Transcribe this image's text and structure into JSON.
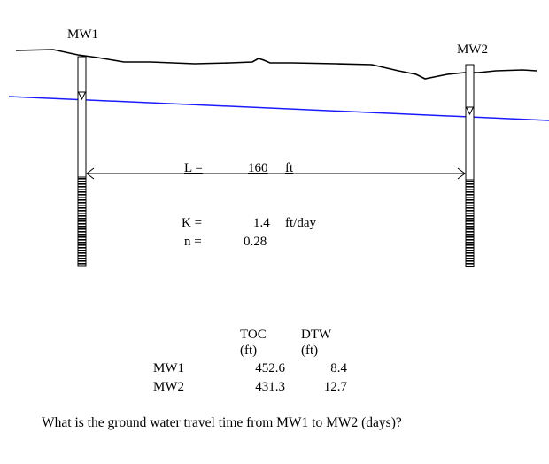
{
  "wells": [
    {
      "name": "MW1"
    },
    {
      "name": "MW2"
    }
  ],
  "distance": {
    "label": "L =",
    "value": "160",
    "unit": "ft"
  },
  "conductivity": {
    "label": "K =",
    "value": "1.4",
    "unit": "ft/day"
  },
  "porosity": {
    "label": "n =",
    "value": "0.28"
  },
  "table": {
    "col_toc": "TOC",
    "col_toc_unit": "(ft)",
    "col_dtw": "DTW",
    "col_dtw_unit": "(ft)",
    "rows": [
      {
        "well": "MW1",
        "toc": "452.6",
        "dtw": "8.4"
      },
      {
        "well": "MW2",
        "toc": "431.3",
        "dtw": "12.7"
      }
    ]
  },
  "question": "What is the ground water travel time from MW1 to MW2 (days)?",
  "colors": {
    "water_table": "#1a1aff",
    "ink": "#000000"
  }
}
